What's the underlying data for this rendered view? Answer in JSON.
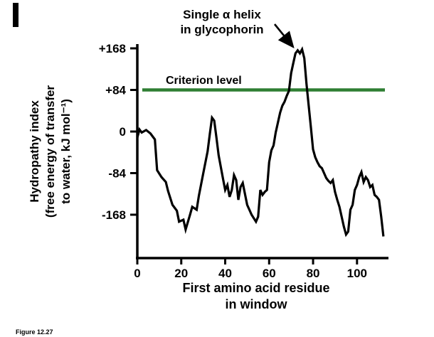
{
  "figure": {
    "caption": "Figure 12.27"
  },
  "chart_data": {
    "type": "line",
    "title": "",
    "xlabel": "First amino acid residue in window",
    "xlabel_lines": [
      "First amino acid residue",
      "in window"
    ],
    "ylabel": "Hydropathy index (free energy of transfer to water, kJ mol⁻¹)",
    "ylabel_lines": [
      "Hydropathy index",
      "(free energy of transfer",
      "to water, kJ mol⁻¹)"
    ],
    "annotation_lines": [
      "Single α helix",
      "in glycophorin"
    ],
    "criterion_label": "Criterion level",
    "criterion_level": 84,
    "x_ticks": [
      0,
      20,
      40,
      60,
      80,
      100
    ],
    "y_ticks": [
      {
        "value": 168,
        "label": "+168"
      },
      {
        "value": 84,
        "label": "+84"
      },
      {
        "value": 0,
        "label": "0"
      },
      {
        "value": -84,
        "label": "-84"
      },
      {
        "value": -168,
        "label": "-168"
      }
    ],
    "xlim": [
      0,
      114
    ],
    "ylim": [
      -256,
      168
    ],
    "grid": false,
    "legend": "none",
    "colors": {
      "line": "#000000",
      "criterion": "#2f7e33"
    },
    "series": [
      {
        "name": "hydropathy",
        "points": [
          [
            0,
            -12
          ],
          [
            1,
            4
          ],
          [
            2,
            -2
          ],
          [
            4,
            3
          ],
          [
            6,
            -4
          ],
          [
            7,
            -10
          ],
          [
            8,
            -16
          ],
          [
            9,
            -78
          ],
          [
            11,
            -92
          ],
          [
            13,
            -102
          ],
          [
            14,
            -120
          ],
          [
            16,
            -148
          ],
          [
            18,
            -160
          ],
          [
            19,
            -182
          ],
          [
            21,
            -178
          ],
          [
            22,
            -198
          ],
          [
            24,
            -168
          ],
          [
            25,
            -152
          ],
          [
            27,
            -158
          ],
          [
            28,
            -130
          ],
          [
            30,
            -85
          ],
          [
            32,
            -40
          ],
          [
            33,
            -5
          ],
          [
            34,
            28
          ],
          [
            35,
            22
          ],
          [
            36,
            -12
          ],
          [
            37,
            -48
          ],
          [
            39,
            -95
          ],
          [
            40,
            -118
          ],
          [
            41,
            -108
          ],
          [
            42,
            -132
          ],
          [
            43,
            -118
          ],
          [
            44,
            -88
          ],
          [
            45,
            -98
          ],
          [
            46,
            -138
          ],
          [
            47,
            -112
          ],
          [
            48,
            -104
          ],
          [
            50,
            -148
          ],
          [
            51,
            -158
          ],
          [
            52,
            -168
          ],
          [
            54,
            -182
          ],
          [
            55,
            -172
          ],
          [
            56,
            -118
          ],
          [
            57,
            -128
          ],
          [
            58,
            -122
          ],
          [
            59,
            -118
          ],
          [
            60,
            -62
          ],
          [
            61,
            -38
          ],
          [
            62,
            -28
          ],
          [
            63,
            -2
          ],
          [
            64,
            18
          ],
          [
            65,
            38
          ],
          [
            66,
            52
          ],
          [
            67,
            60
          ],
          [
            68,
            72
          ],
          [
            69,
            82
          ],
          [
            70,
            118
          ],
          [
            71,
            138
          ],
          [
            72,
            158
          ],
          [
            73,
            164
          ],
          [
            74,
            158
          ],
          [
            75,
            166
          ],
          [
            76,
            148
          ],
          [
            77,
            96
          ],
          [
            78,
            52
          ],
          [
            79,
            8
          ],
          [
            80,
            -36
          ],
          [
            81,
            -52
          ],
          [
            82,
            -62
          ],
          [
            83,
            -70
          ],
          [
            84,
            -74
          ],
          [
            85,
            -84
          ],
          [
            86,
            -94
          ],
          [
            87,
            -100
          ],
          [
            88,
            -104
          ],
          [
            89,
            -98
          ],
          [
            90,
            -122
          ],
          [
            91,
            -138
          ],
          [
            92,
            -152
          ],
          [
            93,
            -172
          ],
          [
            94,
            -192
          ],
          [
            95,
            -208
          ],
          [
            96,
            -202
          ],
          [
            97,
            -158
          ],
          [
            98,
            -148
          ],
          [
            99,
            -118
          ],
          [
            100,
            -108
          ],
          [
            101,
            -92
          ],
          [
            102,
            -82
          ],
          [
            103,
            -102
          ],
          [
            104,
            -92
          ],
          [
            105,
            -98
          ],
          [
            106,
            -112
          ],
          [
            107,
            -108
          ],
          [
            108,
            -128
          ],
          [
            109,
            -132
          ],
          [
            110,
            -138
          ],
          [
            111,
            -172
          ],
          [
            112,
            -212
          ]
        ]
      }
    ]
  }
}
